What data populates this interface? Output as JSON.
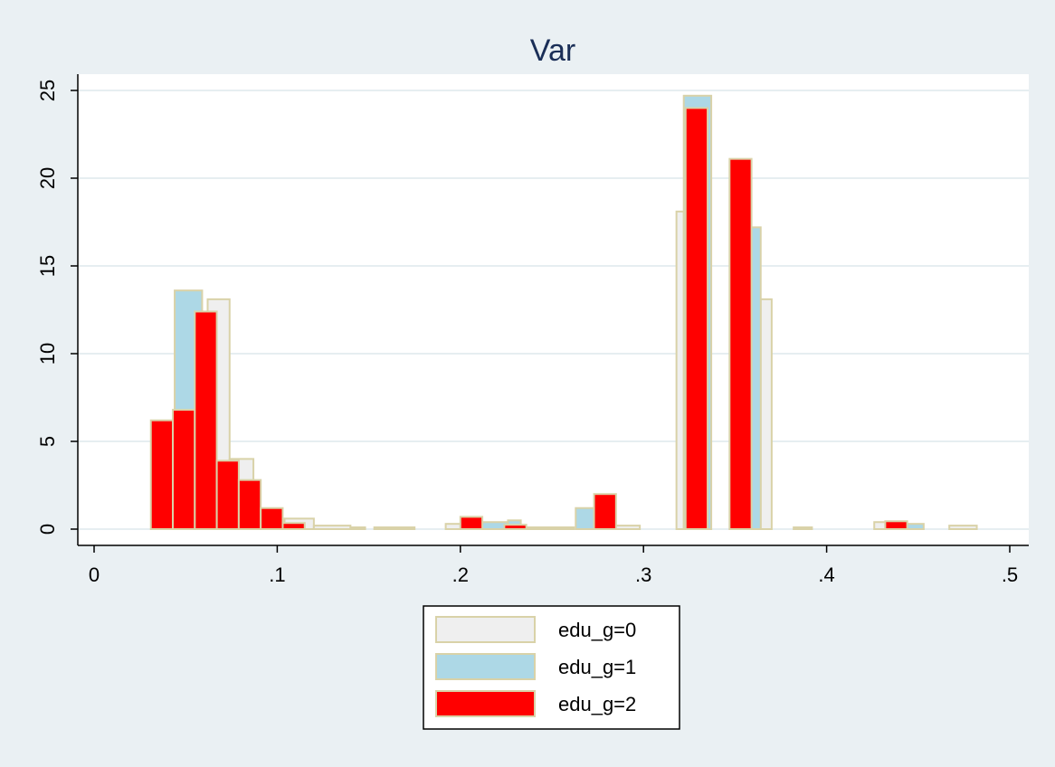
{
  "chart_data": {
    "type": "bar",
    "title": "Var",
    "xlabel": "",
    "ylabel": "",
    "xlim": [
      0,
      0.5
    ],
    "ylim": [
      0,
      25
    ],
    "x_ticks": [
      {
        "value": 0,
        "label": "0"
      },
      {
        "value": 0.1,
        "label": ".1"
      },
      {
        "value": 0.2,
        "label": ".2"
      },
      {
        "value": 0.3,
        "label": ".3"
      },
      {
        "value": 0.4,
        "label": ".4"
      },
      {
        "value": 0.5,
        "label": ".5"
      }
    ],
    "y_ticks": [
      {
        "value": 0,
        "label": "0"
      },
      {
        "value": 5,
        "label": "5"
      },
      {
        "value": 10,
        "label": "10"
      },
      {
        "value": 15,
        "label": "15"
      },
      {
        "value": 20,
        "label": "20"
      },
      {
        "value": 25,
        "label": "25"
      }
    ],
    "grid": true,
    "legend_position": "bottom",
    "series": [
      {
        "name": "edu_g=0",
        "color": "#efefef",
        "border": "#d9d2a8",
        "bars": [
          {
            "x0": 0.062,
            "x1": 0.074,
            "y": 13.1
          },
          {
            "x0": 0.074,
            "x1": 0.087,
            "y": 4.0
          },
          {
            "x0": 0.104,
            "x1": 0.12,
            "y": 0.6
          },
          {
            "x0": 0.12,
            "x1": 0.14,
            "y": 0.2
          },
          {
            "x0": 0.14,
            "x1": 0.148,
            "y": 0.1
          },
          {
            "x0": 0.153,
            "x1": 0.175,
            "y": 0.1
          },
          {
            "x0": 0.192,
            "x1": 0.2,
            "y": 0.3
          },
          {
            "x0": 0.235,
            "x1": 0.262,
            "y": 0.1
          },
          {
            "x0": 0.284,
            "x1": 0.298,
            "y": 0.2
          },
          {
            "x0": 0.318,
            "x1": 0.322,
            "y": 18.1
          },
          {
            "x0": 0.364,
            "x1": 0.37,
            "y": 13.1
          },
          {
            "x0": 0.382,
            "x1": 0.392,
            "y": 0.1
          },
          {
            "x0": 0.426,
            "x1": 0.432,
            "y": 0.4
          },
          {
            "x0": 0.467,
            "x1": 0.482,
            "y": 0.2
          }
        ]
      },
      {
        "name": "edu_g=1",
        "color": "#add8e6",
        "border": "#d9d2a8",
        "bars": [
          {
            "x0": 0.044,
            "x1": 0.059,
            "y": 13.6
          },
          {
            "x0": 0.212,
            "x1": 0.226,
            "y": 0.4
          },
          {
            "x0": 0.226,
            "x1": 0.233,
            "y": 0.5
          },
          {
            "x0": 0.263,
            "x1": 0.273,
            "y": 1.2
          },
          {
            "x0": 0.322,
            "x1": 0.337,
            "y": 24.7
          },
          {
            "x0": 0.356,
            "x1": 0.364,
            "y": 17.2
          },
          {
            "x0": 0.443,
            "x1": 0.453,
            "y": 0.3
          }
        ]
      },
      {
        "name": "edu_g=2",
        "color": "#ff0000",
        "border": "#d9d2a8",
        "bars": [
          {
            "x0": 0.031,
            "x1": 0.043,
            "y": 6.2
          },
          {
            "x0": 0.043,
            "x1": 0.055,
            "y": 6.8
          },
          {
            "x0": 0.055,
            "x1": 0.067,
            "y": 12.4
          },
          {
            "x0": 0.067,
            "x1": 0.079,
            "y": 3.9
          },
          {
            "x0": 0.079,
            "x1": 0.091,
            "y": 2.8
          },
          {
            "x0": 0.091,
            "x1": 0.103,
            "y": 1.2
          },
          {
            "x0": 0.103,
            "x1": 0.115,
            "y": 0.35
          },
          {
            "x0": 0.2,
            "x1": 0.212,
            "y": 0.7
          },
          {
            "x0": 0.224,
            "x1": 0.236,
            "y": 0.25
          },
          {
            "x0": 0.273,
            "x1": 0.285,
            "y": 2.0
          },
          {
            "x0": 0.323,
            "x1": 0.335,
            "y": 24.0
          },
          {
            "x0": 0.347,
            "x1": 0.359,
            "y": 21.1
          },
          {
            "x0": 0.432,
            "x1": 0.444,
            "y": 0.45
          }
        ]
      }
    ]
  }
}
